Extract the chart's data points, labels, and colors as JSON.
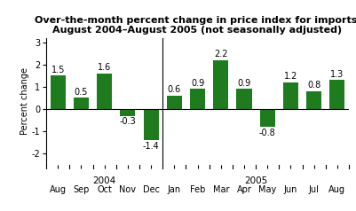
{
  "months": [
    "Aug",
    "Sep",
    "Oct",
    "Nov",
    "Dec",
    "Jan",
    "Feb",
    "Mar",
    "Apr",
    "May",
    "Jun",
    "Jul",
    "Aug"
  ],
  "values": [
    1.5,
    0.5,
    1.6,
    -0.3,
    -1.4,
    0.6,
    0.9,
    2.2,
    0.9,
    -0.8,
    1.2,
    0.8,
    1.3
  ],
  "bar_color": "#1e7b1e",
  "year_labels": [
    "2004",
    "2005"
  ],
  "year_xpos": [
    2.0,
    8.5
  ],
  "title_line1": "Over-the-month percent change in price index for imports,",
  "title_line2": "August 2004–August 2005 (not seasonally adjusted)",
  "ylabel": "Percent change",
  "ylim": [
    -2.5,
    3.2
  ],
  "yticks": [
    -2,
    -1,
    0,
    1,
    2,
    3
  ],
  "title_fontsize": 8.0,
  "label_fontsize": 7.0,
  "tick_fontsize": 7.0,
  "year_fontsize": 7.5,
  "bar_label_fontsize": 7.0,
  "background_color": "#ffffff",
  "divider_after_index": 4
}
